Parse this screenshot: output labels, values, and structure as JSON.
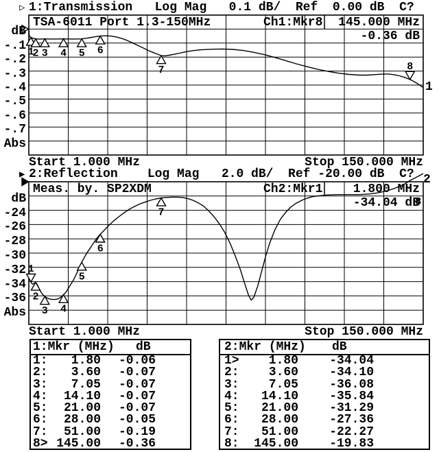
{
  "screen": {
    "bg": "#ffffff",
    "fg": "#000000"
  },
  "ch1": {
    "indicator": "▷",
    "active": false,
    "title": "1:Transmission   Log Mag   0.1 dB/  Ref  0.00 dB  C?",
    "dut_label": "TSA-6011 Port 1.3-150MHz",
    "readout_label": "Ch1:Mkr8",
    "readout_freq": "145.000 MHz",
    "readout_value": "-0.36 dB",
    "unit_label": "dB",
    "scale_labels": [
      "-.1",
      "-.2",
      "-.3",
      "-.4",
      "-.5",
      "-.6",
      "-.7"
    ],
    "abs_label": "Abs",
    "start_label": "Start 1.000 MHz",
    "stop_label": "Stop 150.000 MHz",
    "trace_number": "1"
  },
  "ch2": {
    "indicator": "▶",
    "active": true,
    "title": "2:Reflection    Log Mag   2.0 dB/  Ref -20.00 dB  C?",
    "meas_label": "Meas. by. SP2XDM",
    "readout_label": "Ch2:Mkr1",
    "readout_freq": "1.800 MHz",
    "readout_value": "-34.04 dB",
    "unit_label": "dB",
    "scale_labels": [
      "-24",
      "-26",
      "-28",
      "-30",
      "-32",
      "-34",
      "-36"
    ],
    "abs_label": "Abs",
    "start_label": "Start 1.000 MHz",
    "stop_label": "Stop 150.000 MHz",
    "trace_number": "2"
  },
  "tables": {
    "ch1": {
      "header": "1:Mkr (MHz)",
      "unit": "dB",
      "rows": [
        {
          "n": "1:",
          "f": "1.80",
          "v": "-0.06"
        },
        {
          "n": "2:",
          "f": "3.60",
          "v": "-0.07"
        },
        {
          "n": "3:",
          "f": "7.05",
          "v": "-0.07"
        },
        {
          "n": "4:",
          "f": "14.10",
          "v": "-0.07"
        },
        {
          "n": "5:",
          "f": "21.00",
          "v": "-0.07"
        },
        {
          "n": "6:",
          "f": "28.00",
          "v": "-0.05"
        },
        {
          "n": "7:",
          "f": "51.00",
          "v": "-0.19"
        },
        {
          "n": "8>",
          "f": "145.00",
          "v": "-0.36"
        }
      ]
    },
    "ch2": {
      "header": "2:Mkr (MHz)",
      "unit": "dB",
      "rows": [
        {
          "n": "1>",
          "f": "1.80",
          "v": "-34.04"
        },
        {
          "n": "2:",
          "f": "3.60",
          "v": "-34.10"
        },
        {
          "n": "3:",
          "f": "7.05",
          "v": "-36.08"
        },
        {
          "n": "4:",
          "f": "14.10",
          "v": "-35.84"
        },
        {
          "n": "5:",
          "f": "21.00",
          "v": "-31.29"
        },
        {
          "n": "6:",
          "f": "28.00",
          "v": "-27.36"
        },
        {
          "n": "7:",
          "f": "51.00",
          "v": "-22.27"
        },
        {
          "n": "8:",
          "f": "145.00",
          "v": "-19.83"
        }
      ]
    }
  },
  "chart_data": [
    {
      "type": "line",
      "name": "Transmission Log Mag",
      "xlabel": "MHz",
      "x_start_mhz": 1.0,
      "x_stop_mhz": 150.0,
      "db_per_div": 0.1,
      "ref_db": 0.0,
      "ylim_top_db": 0.1,
      "ylim_bottom_db": -0.9,
      "active": false,
      "markers": [
        {
          "n": "1",
          "f": 1.8,
          "db": -0.06,
          "style": "up"
        },
        {
          "n": "2",
          "f": 3.6,
          "db": -0.07,
          "style": "up"
        },
        {
          "n": "3",
          "f": 7.05,
          "db": -0.07,
          "style": "up"
        },
        {
          "n": "4",
          "f": 14.1,
          "db": -0.07,
          "style": "up"
        },
        {
          "n": "5",
          "f": 21.0,
          "db": -0.07,
          "style": "up"
        },
        {
          "n": "6",
          "f": 28.0,
          "db": -0.05,
          "style": "up"
        },
        {
          "n": "7",
          "f": 51.0,
          "db": -0.19,
          "style": "up"
        },
        {
          "n": "8",
          "f": 145.0,
          "db": -0.36,
          "style": "down"
        }
      ],
      "trace": [
        [
          1,
          -0.005
        ],
        [
          1.2,
          -0.05
        ],
        [
          1.8,
          -0.06
        ],
        [
          2.5,
          -0.065
        ],
        [
          3.6,
          -0.07
        ],
        [
          5,
          -0.072
        ],
        [
          7.05,
          -0.07
        ],
        [
          10,
          -0.071
        ],
        [
          14.1,
          -0.07
        ],
        [
          18,
          -0.071
        ],
        [
          21,
          -0.07
        ],
        [
          24,
          -0.062
        ],
        [
          26,
          -0.055
        ],
        [
          28,
          -0.05
        ],
        [
          30,
          -0.048
        ],
        [
          32,
          -0.05
        ],
        [
          34,
          -0.056
        ],
        [
          36,
          -0.066
        ],
        [
          38,
          -0.08
        ],
        [
          40,
          -0.097
        ],
        [
          42,
          -0.115
        ],
        [
          44,
          -0.133
        ],
        [
          46,
          -0.152
        ],
        [
          48,
          -0.168
        ],
        [
          50,
          -0.182
        ],
        [
          51,
          -0.19
        ],
        [
          52.5,
          -0.191
        ],
        [
          54,
          -0.187
        ],
        [
          56,
          -0.18
        ],
        [
          58,
          -0.172
        ],
        [
          60,
          -0.163
        ],
        [
          63,
          -0.154
        ],
        [
          66,
          -0.148
        ],
        [
          70,
          -0.144
        ],
        [
          74,
          -0.142
        ],
        [
          78,
          -0.145
        ],
        [
          82,
          -0.153
        ],
        [
          86,
          -0.166
        ],
        [
          90,
          -0.183
        ],
        [
          94,
          -0.203
        ],
        [
          98,
          -0.225
        ],
        [
          102,
          -0.248
        ],
        [
          106,
          -0.268
        ],
        [
          110,
          -0.287
        ],
        [
          114,
          -0.302
        ],
        [
          118,
          -0.315
        ],
        [
          122,
          -0.324
        ],
        [
          126,
          -0.329
        ],
        [
          129,
          -0.329
        ],
        [
          132,
          -0.325
        ],
        [
          135,
          -0.321
        ],
        [
          137,
          -0.321
        ],
        [
          139,
          -0.326
        ],
        [
          141,
          -0.334
        ],
        [
          143,
          -0.345
        ],
        [
          145,
          -0.36
        ],
        [
          146.5,
          -0.375
        ],
        [
          148,
          -0.392
        ],
        [
          149,
          -0.405
        ],
        [
          150,
          -0.418
        ]
      ]
    },
    {
      "type": "line",
      "name": "Reflection Log Mag",
      "xlabel": "MHz",
      "x_start_mhz": 1.0,
      "x_stop_mhz": 150.0,
      "db_per_div": 2.0,
      "ref_db": -20.0,
      "ylim_top_db": -20.0,
      "ylim_bottom_db": -40.0,
      "active": true,
      "markers": [
        {
          "n": "1",
          "f": 1.8,
          "db": -34.04,
          "style": "down"
        },
        {
          "n": "2",
          "f": 3.6,
          "db": -34.1,
          "style": "up"
        },
        {
          "n": "3",
          "f": 7.05,
          "db": -36.08,
          "style": "up"
        },
        {
          "n": "4",
          "f": 14.1,
          "db": -35.84,
          "style": "up"
        },
        {
          "n": "5",
          "f": 21.0,
          "db": -31.29,
          "style": "up"
        },
        {
          "n": "6",
          "f": 28.0,
          "db": -27.36,
          "style": "up"
        },
        {
          "n": "7",
          "f": 51.0,
          "db": -22.27,
          "style": "up"
        },
        {
          "n": "8",
          "f": 145.0,
          "db": -19.83,
          "style": "label"
        }
      ],
      "trace": [
        [
          1,
          -32.4
        ],
        [
          1.3,
          -33.1
        ],
        [
          1.8,
          -34.04
        ],
        [
          2.3,
          -34.35
        ],
        [
          2.8,
          -34.3
        ],
        [
          3.6,
          -34.1
        ],
        [
          4.2,
          -34.4
        ],
        [
          5,
          -35.1
        ],
        [
          6,
          -35.7
        ],
        [
          7.05,
          -36.08
        ],
        [
          8,
          -36.32
        ],
        [
          9,
          -36.45
        ],
        [
          10,
          -36.5
        ],
        [
          11,
          -36.5
        ],
        [
          12,
          -36.42
        ],
        [
          13,
          -36.2
        ],
        [
          14.1,
          -35.84
        ],
        [
          15,
          -35.5
        ],
        [
          16,
          -34.9
        ],
        [
          17,
          -34.3
        ],
        [
          18,
          -33.7
        ],
        [
          19,
          -32.9
        ],
        [
          20,
          -32.1
        ],
        [
          21,
          -31.29
        ],
        [
          22,
          -30.6
        ],
        [
          23,
          -29.95
        ],
        [
          24,
          -29.4
        ],
        [
          25,
          -28.85
        ],
        [
          26,
          -28.3
        ],
        [
          27,
          -27.8
        ],
        [
          28,
          -27.36
        ],
        [
          29.5,
          -26.8
        ],
        [
          31,
          -26.2
        ],
        [
          33,
          -25.5
        ],
        [
          35,
          -24.9
        ],
        [
          37,
          -24.35
        ],
        [
          39,
          -23.85
        ],
        [
          41,
          -23.45
        ],
        [
          43,
          -23.1
        ],
        [
          45,
          -22.85
        ],
        [
          47,
          -22.6
        ],
        [
          49,
          -22.4
        ],
        [
          51,
          -22.27
        ],
        [
          53,
          -22.2
        ],
        [
          55,
          -22.15
        ],
        [
          57,
          -22.15
        ],
        [
          59,
          -22.2
        ],
        [
          61,
          -22.35
        ],
        [
          63,
          -22.6
        ],
        [
          65,
          -22.95
        ],
        [
          67,
          -23.4
        ],
        [
          69,
          -24.1
        ],
        [
          71,
          -24.9
        ],
        [
          73,
          -25.9
        ],
        [
          75,
          -27.1
        ],
        [
          77,
          -28.6
        ],
        [
          79,
          -30.4
        ],
        [
          81,
          -32.4
        ],
        [
          82.5,
          -34.2
        ],
        [
          84,
          -35.9
        ],
        [
          85,
          -36.6
        ],
        [
          86,
          -36.2
        ],
        [
          87.5,
          -34.6
        ],
        [
          89,
          -32.5
        ],
        [
          90.5,
          -30.4
        ],
        [
          92,
          -28.6
        ],
        [
          94,
          -26.7
        ],
        [
          96,
          -25.3
        ],
        [
          98,
          -24.3
        ],
        [
          100,
          -23.55
        ],
        [
          102,
          -23.0
        ],
        [
          105,
          -22.45
        ],
        [
          108,
          -22.1
        ],
        [
          111,
          -21.95
        ],
        [
          114,
          -21.85
        ],
        [
          118,
          -21.8
        ],
        [
          122,
          -21.8
        ],
        [
          126,
          -21.8
        ],
        [
          130,
          -21.7
        ],
        [
          133,
          -21.55
        ],
        [
          136,
          -21.3
        ],
        [
          139,
          -20.95
        ],
        [
          141,
          -20.65
        ],
        [
          143,
          -20.3
        ],
        [
          145,
          -19.83
        ],
        [
          147,
          -19.45
        ],
        [
          149,
          -19.05
        ],
        [
          150,
          -18.85
        ]
      ]
    }
  ]
}
